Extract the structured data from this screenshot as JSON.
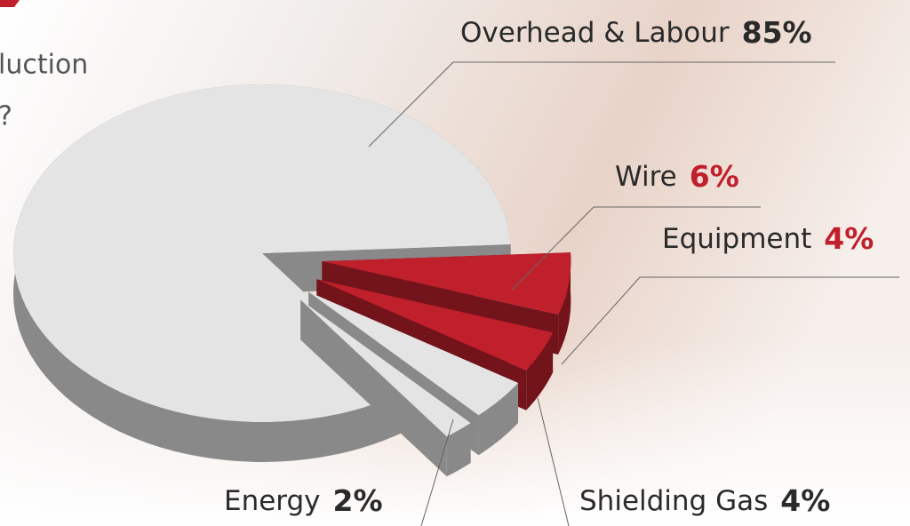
{
  "chart_data": {
    "type": "pie",
    "intro_text": [
      "luction",
      "?"
    ],
    "categories": [
      "Wire",
      "Equipment",
      "Shielding Gas",
      "Energy",
      "Overhead & Labour"
    ],
    "values": [
      6,
      4,
      4,
      2,
      85
    ],
    "value_labels": [
      "6%",
      "4%",
      "4%",
      "2%",
      "85%"
    ],
    "colors": [
      "#c01f2c",
      "#c01f2c",
      "#e4e4e4",
      "#e4e4e4",
      "#e4e4e4"
    ]
  }
}
